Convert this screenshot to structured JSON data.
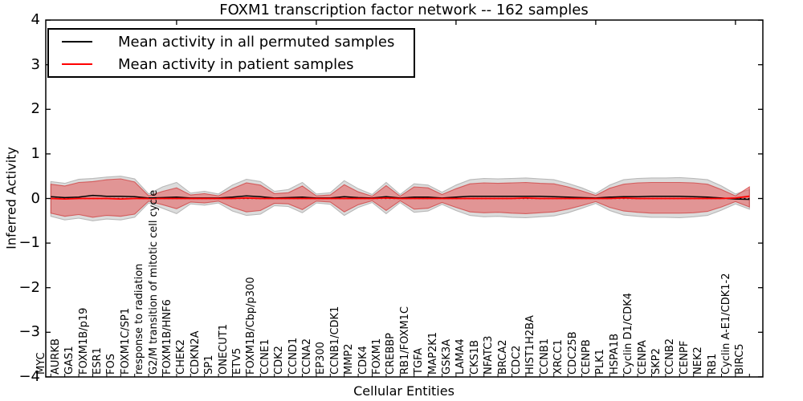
{
  "chart_data": {
    "type": "line",
    "title": "FOXM1 transcription factor network -- 162 samples",
    "xlabel": "Cellular Entities",
    "ylabel": "Inferred Activity",
    "ylim": [
      -4,
      4
    ],
    "yticks": [
      4,
      3,
      2,
      1,
      0,
      -1,
      -2,
      -3,
      -4
    ],
    "grid": false,
    "legend_position": "upper left",
    "zero_line": {
      "value": 0,
      "style": "dotted",
      "color": "#000000"
    },
    "categories": [
      "MYC",
      "AURKB",
      "GAS1",
      "FOXM1B/p19",
      "ESR1",
      "FOS",
      "FOXM1C/SP1",
      "response to radiation",
      "G2/M transition of mitotic cell cycle",
      "FOXM1B/HNF6",
      "CHEK2",
      "CDKN2A",
      "SP1",
      "ONECUT1",
      "ETV5",
      "FOXM1B/Cbp/p300",
      "CCNE1",
      "CDK2",
      "CCND1",
      "CCNA2",
      "EP300",
      "CCNB1/CDK1",
      "MMP2",
      "CDK4",
      "FOXM1",
      "CREBBP",
      "RB1/FOXM1C",
      "TGFA",
      "MAP2K1",
      "GSK3A",
      "LAMA4",
      "CKS1B",
      "NFATC3",
      "BRCA2",
      "CDC2",
      "HIST1H2BA",
      "CCNB1",
      "XRCC1",
      "CDC25B",
      "CENPB",
      "PLK1",
      "HSPA1B",
      "Cyclin D1/CDK4",
      "CENPA",
      "SKP2",
      "CCNB2",
      "CENPF",
      "NEK2",
      "RB1",
      "Cyclin A-E1/CDK1-2",
      "BIRC5"
    ],
    "series": [
      {
        "name": "Mean activity in all permuted samples",
        "color": "#000000",
        "style": "solid",
        "values": [
          0.04,
          0.02,
          0.03,
          0.07,
          0.05,
          0.05,
          0.04,
          0.01,
          0.02,
          0.03,
          0.01,
          0.01,
          0.01,
          0.03,
          0.06,
          0.04,
          0.01,
          0.02,
          0.03,
          0.01,
          0.01,
          0.04,
          0.02,
          0.01,
          0.04,
          0.01,
          0.03,
          0.03,
          0.01,
          0.03,
          0.05,
          0.05,
          0.05,
          0.05,
          0.05,
          0.05,
          0.04,
          0.03,
          0.02,
          0.01,
          0.03,
          0.04,
          0.04,
          0.05,
          0.05,
          0.05,
          0.04,
          0.03,
          0.01,
          -0.01,
          -0.02
        ]
      },
      {
        "name": "Mean activity in patient samples",
        "color": "#ff0000",
        "style": "solid",
        "values": [
          0.0,
          -0.01,
          0.0,
          0.0,
          0.0,
          -0.01,
          0.0,
          0.0,
          0.0,
          0.0,
          0.0,
          0.0,
          0.0,
          0.0,
          0.01,
          0.0,
          0.0,
          0.0,
          0.0,
          0.0,
          0.0,
          0.0,
          0.0,
          0.0,
          0.01,
          0.0,
          0.0,
          0.0,
          0.0,
          0.0,
          0.0,
          0.0,
          0.0,
          0.0,
          0.01,
          0.0,
          0.0,
          0.0,
          0.0,
          0.0,
          0.0,
          0.01,
          0.0,
          0.0,
          0.0,
          0.0,
          0.0,
          0.0,
          0.0,
          0.01,
          0.05
        ]
      }
    ],
    "bands": [
      {
        "name": "permuted samples envelope",
        "fill": "#dcdcdc",
        "edge": "#b8b8b8",
        "upper": [
          0.38,
          0.34,
          0.43,
          0.45,
          0.48,
          0.5,
          0.44,
          0.1,
          0.26,
          0.36,
          0.12,
          0.16,
          0.1,
          0.3,
          0.43,
          0.38,
          0.16,
          0.2,
          0.36,
          0.1,
          0.13,
          0.4,
          0.22,
          0.09,
          0.36,
          0.09,
          0.33,
          0.3,
          0.14,
          0.3,
          0.42,
          0.45,
          0.44,
          0.45,
          0.46,
          0.44,
          0.42,
          0.34,
          0.24,
          0.11,
          0.3,
          0.42,
          0.45,
          0.46,
          0.46,
          0.47,
          0.45,
          0.42,
          0.28,
          0.1,
          0.2
        ],
        "lower": [
          -0.4,
          -0.48,
          -0.44,
          -0.5,
          -0.46,
          -0.48,
          -0.42,
          -0.1,
          -0.22,
          -0.34,
          -0.12,
          -0.15,
          -0.1,
          -0.28,
          -0.38,
          -0.35,
          -0.16,
          -0.18,
          -0.32,
          -0.1,
          -0.13,
          -0.38,
          -0.2,
          -0.09,
          -0.34,
          -0.09,
          -0.31,
          -0.28,
          -0.13,
          -0.27,
          -0.38,
          -0.41,
          -0.4,
          -0.42,
          -0.43,
          -0.41,
          -0.39,
          -0.32,
          -0.22,
          -0.11,
          -0.27,
          -0.37,
          -0.4,
          -0.42,
          -0.42,
          -0.43,
          -0.41,
          -0.38,
          -0.26,
          -0.12,
          -0.24
        ]
      },
      {
        "name": "patient samples envelope",
        "fill": "rgba(231,62,62,0.45)",
        "edge": "rgba(205,45,45,0.65)",
        "upper": [
          0.32,
          0.28,
          0.36,
          0.38,
          0.42,
          0.44,
          0.37,
          0.06,
          0.16,
          0.24,
          0.08,
          0.11,
          0.06,
          0.22,
          0.35,
          0.3,
          0.11,
          0.13,
          0.28,
          0.06,
          0.08,
          0.31,
          0.15,
          0.05,
          0.29,
          0.05,
          0.26,
          0.24,
          0.09,
          0.22,
          0.33,
          0.35,
          0.34,
          0.35,
          0.36,
          0.34,
          0.33,
          0.26,
          0.17,
          0.07,
          0.23,
          0.32,
          0.35,
          0.36,
          0.36,
          0.36,
          0.35,
          0.32,
          0.2,
          0.06,
          0.26
        ],
        "lower": [
          -0.33,
          -0.4,
          -0.36,
          -0.42,
          -0.38,
          -0.4,
          -0.35,
          -0.06,
          -0.14,
          -0.23,
          -0.08,
          -0.1,
          -0.06,
          -0.2,
          -0.3,
          -0.27,
          -0.11,
          -0.12,
          -0.25,
          -0.06,
          -0.08,
          -0.3,
          -0.14,
          -0.05,
          -0.27,
          -0.05,
          -0.24,
          -0.22,
          -0.09,
          -0.2,
          -0.3,
          -0.32,
          -0.31,
          -0.33,
          -0.34,
          -0.32,
          -0.3,
          -0.24,
          -0.16,
          -0.07,
          -0.2,
          -0.28,
          -0.31,
          -0.33,
          -0.33,
          -0.33,
          -0.32,
          -0.29,
          -0.19,
          -0.07,
          -0.19
        ]
      }
    ],
    "top_tick_indices": [
      9,
      19,
      29,
      39,
      49
    ]
  }
}
